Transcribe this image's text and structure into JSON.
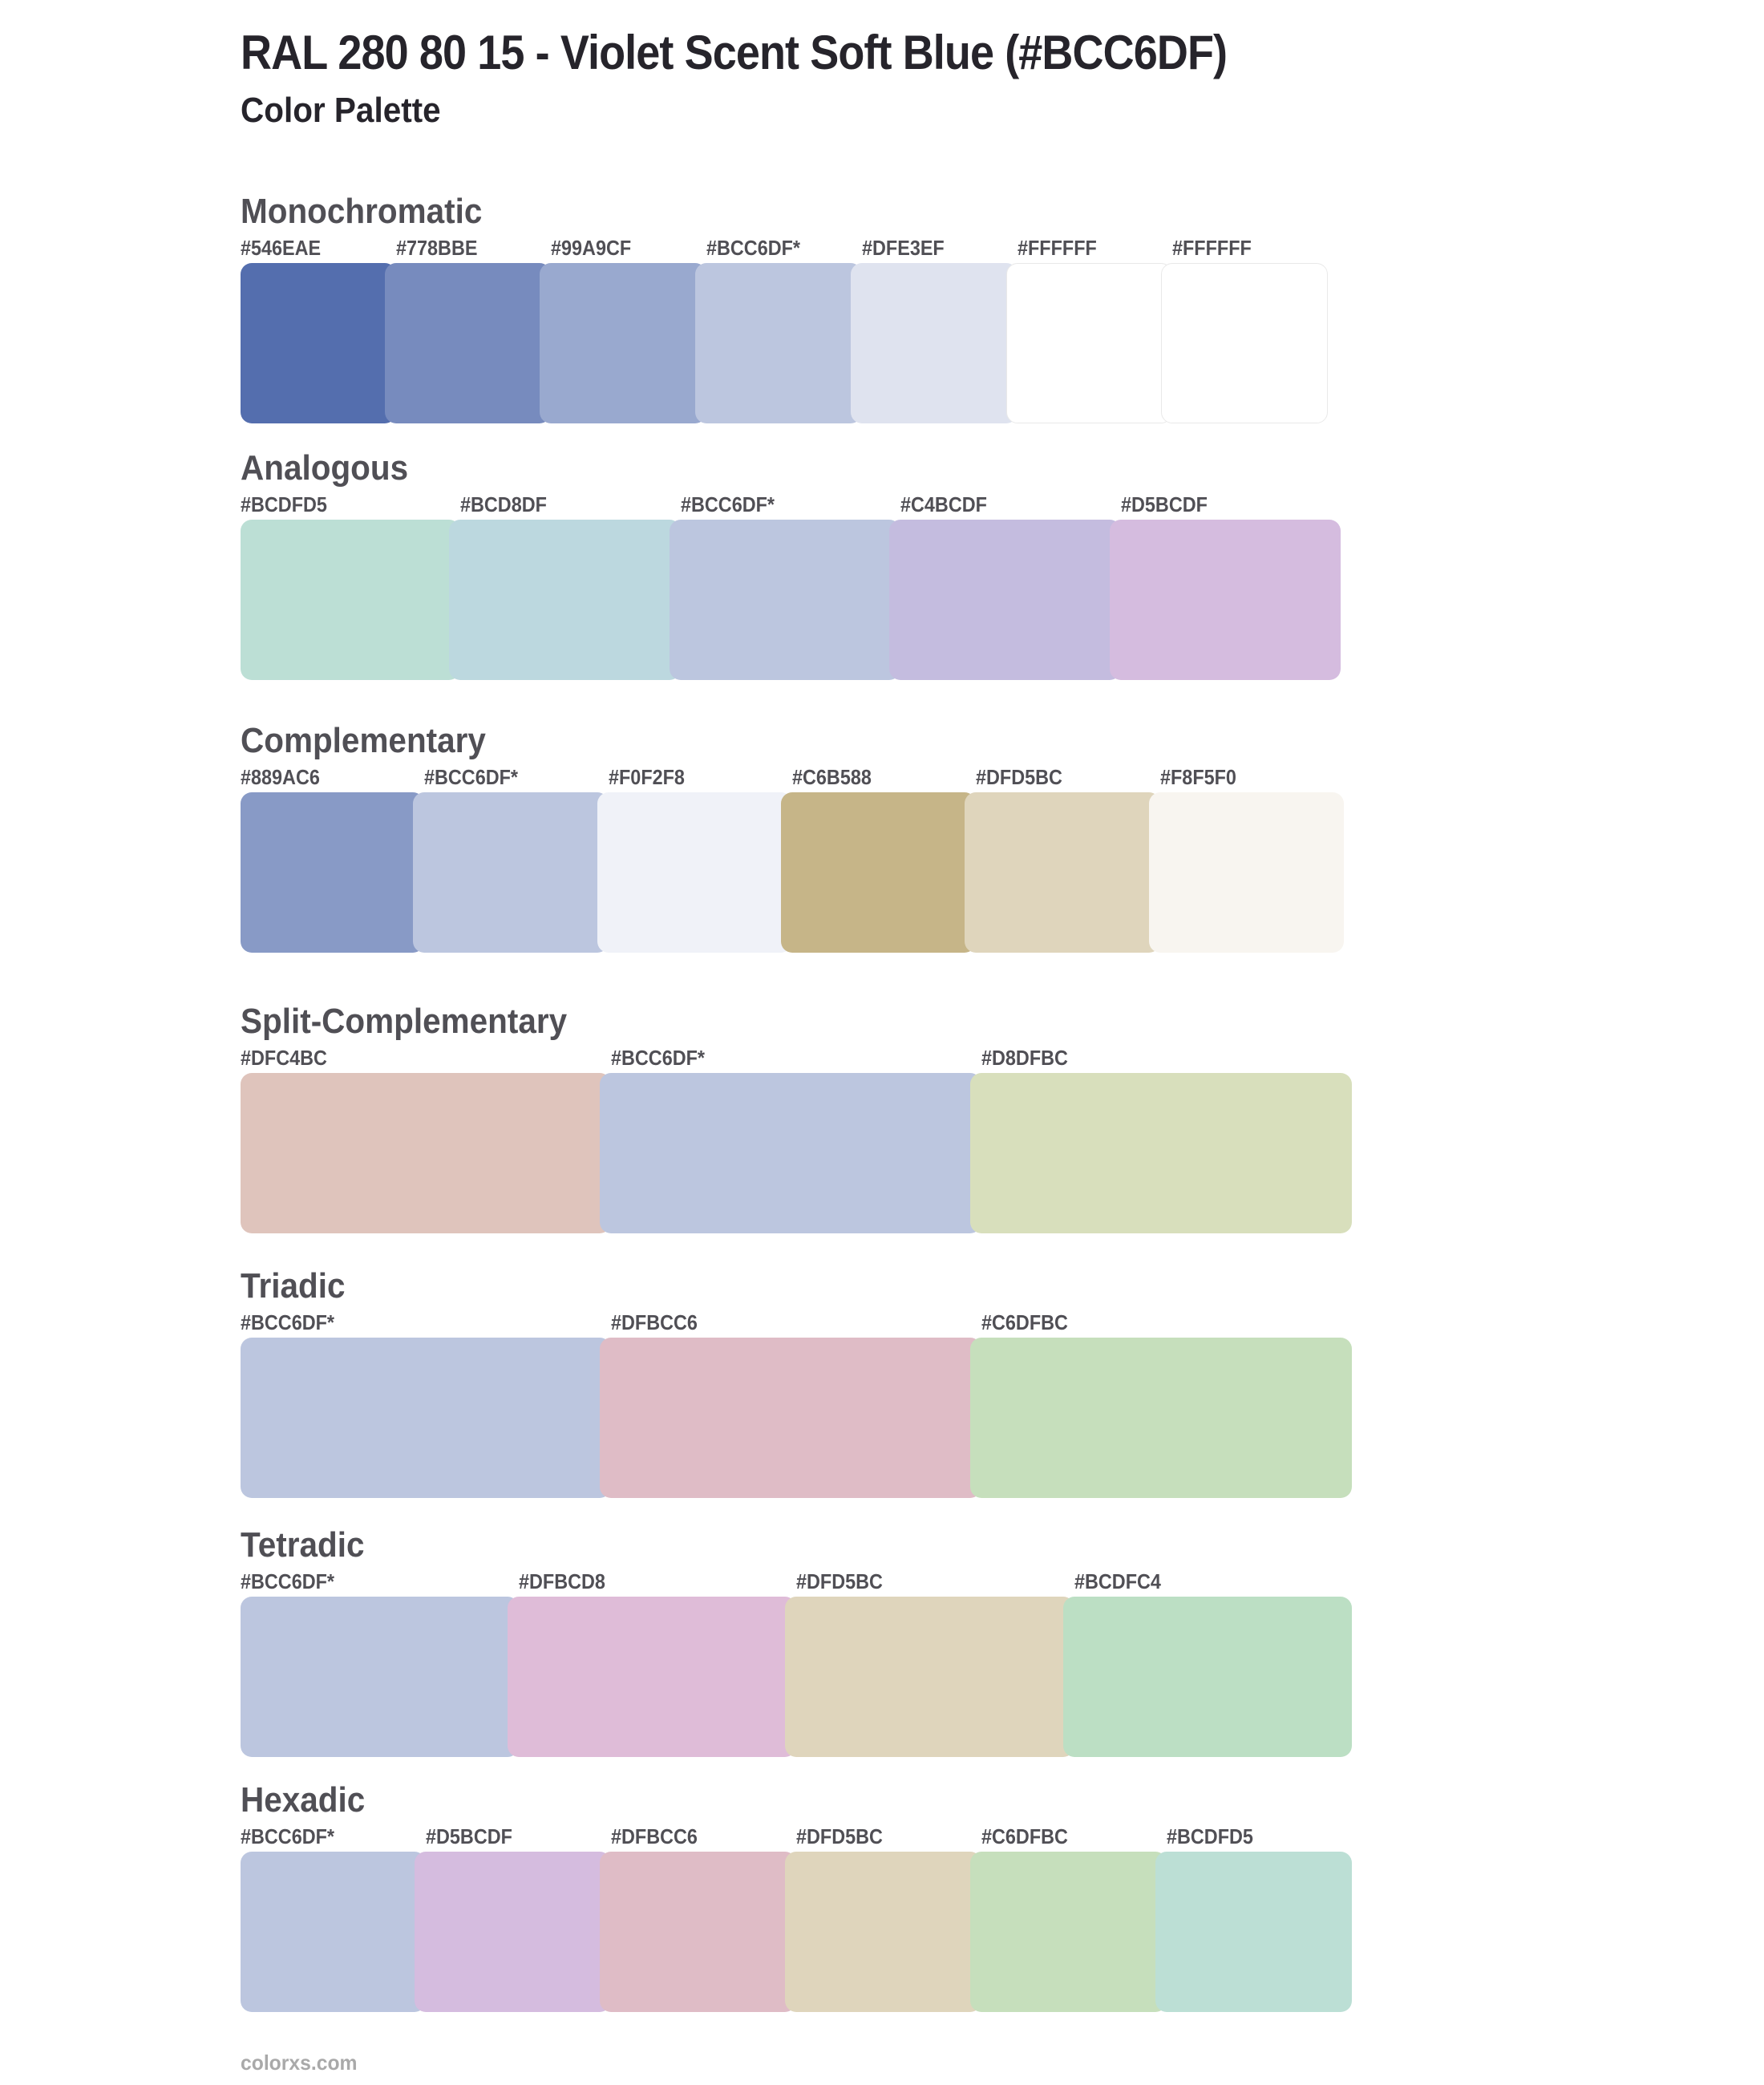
{
  "page": {
    "title": "RAL 280 80 15 - Violet Scent Soft Blue (#BCC6DF)",
    "subtitle": "Color Palette",
    "base_color": "#BCC6DF",
    "background": "#FFFFFF",
    "footer": "colorxs.com"
  },
  "sections": [
    {
      "name": "Monochromatic",
      "swatches": [
        {
          "hex": "#546EAE",
          "label": "#546EAE"
        },
        {
          "hex": "#778BBE",
          "label": "#778BBE"
        },
        {
          "hex": "#99A9CF",
          "label": "#99A9CF"
        },
        {
          "hex": "#BCC6DF",
          "label": "#BCC6DF*"
        },
        {
          "hex": "#DFE3EF",
          "label": "#DFE3EF"
        },
        {
          "hex": "#FFFFFF",
          "label": "#FFFFFF"
        },
        {
          "hex": "#FFFFFF",
          "label": "#FFFFFF"
        }
      ]
    },
    {
      "name": "Analogous",
      "swatches": [
        {
          "hex": "#BCDFD5",
          "label": "#BCDFD5"
        },
        {
          "hex": "#BCD8DF",
          "label": "#BCD8DF"
        },
        {
          "hex": "#BCC6DF",
          "label": "#BCC6DF*"
        },
        {
          "hex": "#C4BCDF",
          "label": "#C4BCDF"
        },
        {
          "hex": "#D5BCDF",
          "label": "#D5BCDF"
        }
      ]
    },
    {
      "name": "Complementary",
      "swatches": [
        {
          "hex": "#889AC6",
          "label": "#889AC6"
        },
        {
          "hex": "#BCC6DF",
          "label": "#BCC6DF*"
        },
        {
          "hex": "#F0F2F8",
          "label": "#F0F2F8"
        },
        {
          "hex": "#C6B588",
          "label": "#C6B588"
        },
        {
          "hex": "#DFD5BC",
          "label": "#DFD5BC"
        },
        {
          "hex": "#F8F5F0",
          "label": "#F8F5F0"
        }
      ]
    },
    {
      "name": "Split-Complementary",
      "swatches": [
        {
          "hex": "#DFC4BC",
          "label": "#DFC4BC"
        },
        {
          "hex": "#BCC6DF",
          "label": "#BCC6DF*"
        },
        {
          "hex": "#D8DFBC",
          "label": "#D8DFBC"
        }
      ]
    },
    {
      "name": "Triadic",
      "swatches": [
        {
          "hex": "#BCC6DF",
          "label": "#BCC6DF*"
        },
        {
          "hex": "#DFBCC6",
          "label": "#DFBCC6"
        },
        {
          "hex": "#C6DFBC",
          "label": "#C6DFBC"
        }
      ]
    },
    {
      "name": "Tetradic",
      "swatches": [
        {
          "hex": "#BCC6DF",
          "label": "#BCC6DF*"
        },
        {
          "hex": "#DFBCD8",
          "label": "#DFBCD8"
        },
        {
          "hex": "#DFD5BC",
          "label": "#DFD5BC"
        },
        {
          "hex": "#BCDFC4",
          "label": "#BCDFC4"
        }
      ]
    },
    {
      "name": "Hexadic",
      "swatches": [
        {
          "hex": "#BCC6DF",
          "label": "#BCC6DF*"
        },
        {
          "hex": "#D5BCDF",
          "label": "#D5BCDF"
        },
        {
          "hex": "#DFBCC6",
          "label": "#DFBCC6"
        },
        {
          "hex": "#DFD5BC",
          "label": "#DFD5BC"
        },
        {
          "hex": "#C6DFBC",
          "label": "#C6DFBC"
        },
        {
          "hex": "#BCDFD5",
          "label": "#BCDFD5"
        }
      ]
    }
  ]
}
